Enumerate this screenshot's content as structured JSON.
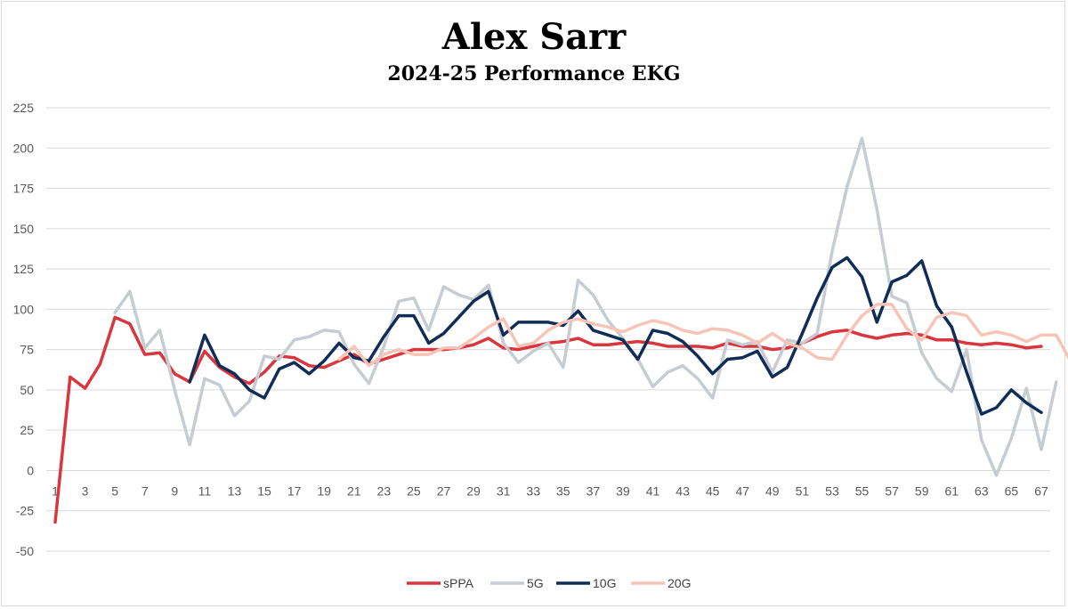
{
  "title": "Alex Sarr",
  "subtitle": "2024-25 Performance EKG",
  "colors": {
    "sPPA": "#d9363e",
    "5G": "#c6ccd2",
    "10G": "#0f2d57",
    "20G": "#f7c4b8",
    "grid": "#d9d9d9"
  },
  "chart_data": {
    "type": "line",
    "title": "Alex Sarr",
    "subtitle": "2024-25 Performance EKG",
    "xlabel": "",
    "ylabel": "",
    "ylim": [
      -50,
      225
    ],
    "yticks": [
      -50,
      -25,
      0,
      25,
      50,
      75,
      100,
      125,
      150,
      175,
      200,
      225
    ],
    "xlim": [
      1,
      67
    ],
    "xticks": [
      1,
      3,
      5,
      7,
      9,
      11,
      13,
      15,
      17,
      19,
      21,
      23,
      25,
      27,
      29,
      31,
      33,
      35,
      37,
      39,
      41,
      43,
      45,
      47,
      49,
      51,
      53,
      55,
      57,
      59,
      61,
      63,
      65,
      67
    ],
    "grid": true,
    "legend_position": "bottom",
    "series": [
      {
        "name": "sPPA",
        "start": 1,
        "values": [
          -32,
          58,
          51,
          66,
          95,
          91,
          72,
          73,
          60,
          55,
          74,
          64,
          58,
          54,
          61,
          71,
          70,
          65,
          64,
          68,
          72,
          66,
          69,
          72,
          75,
          75,
          75,
          76,
          78,
          82,
          76,
          75,
          77,
          79,
          80,
          82,
          78,
          78,
          79,
          80,
          79,
          77,
          77,
          77,
          76,
          79,
          77,
          77,
          75,
          76,
          79,
          83,
          86,
          87,
          84,
          82,
          84,
          85,
          84,
          81,
          81,
          79,
          78,
          79,
          78,
          76,
          77
        ]
      },
      {
        "name": "5G",
        "start": 5,
        "values": [
          98,
          111,
          76,
          87,
          50,
          16,
          57,
          53,
          34,
          43,
          71,
          69,
          81,
          83,
          87,
          86,
          66,
          54,
          77,
          105,
          107,
          87,
          114,
          109,
          106,
          115,
          79,
          67,
          74,
          79,
          64,
          118,
          109,
          93,
          82,
          69,
          52,
          61,
          65,
          57,
          45,
          81,
          78,
          80,
          61,
          81,
          79,
          85,
          136,
          176,
          206,
          162,
          108,
          104,
          73,
          57,
          49,
          75,
          19,
          -3,
          20,
          51,
          13,
          55
        ]
      },
      {
        "name": "10G",
        "start": 10,
        "values": [
          55,
          84,
          65,
          60,
          50,
          45,
          63,
          67,
          60,
          68,
          79,
          70,
          68,
          83,
          96,
          96,
          79,
          85,
          95,
          105,
          111,
          84,
          92,
          92,
          92,
          90,
          99,
          87,
          84,
          81,
          69,
          87,
          85,
          80,
          71,
          60,
          69,
          70,
          74,
          58,
          64,
          85,
          107,
          126,
          132,
          120,
          92,
          117,
          121,
          130,
          102,
          89,
          61,
          35,
          39,
          50,
          42,
          36
        ]
      },
      {
        "name": "20G",
        "start": 20,
        "values": [
          69,
          77,
          65,
          72,
          75,
          72,
          72,
          76,
          76,
          82,
          89,
          94,
          77,
          79,
          87,
          92,
          94,
          91,
          89,
          86,
          90,
          93,
          91,
          87,
          85,
          88,
          87,
          84,
          79,
          85,
          79,
          76,
          70,
          69,
          84,
          96,
          103,
          103,
          88,
          81,
          95,
          98,
          96,
          84,
          86,
          84,
          80,
          84,
          84,
          67,
          77
        ]
      }
    ]
  }
}
